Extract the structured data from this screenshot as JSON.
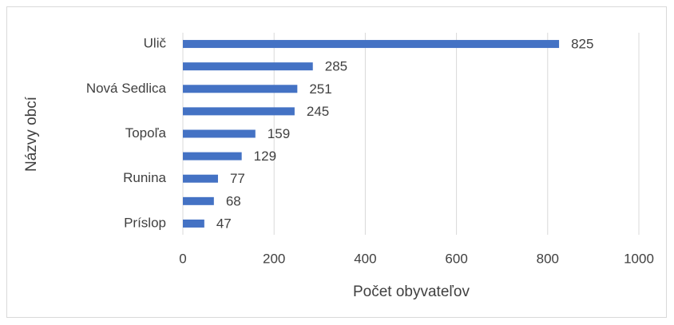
{
  "chart_data": {
    "type": "bar",
    "orientation": "horizontal",
    "x_label": "Počet obyvateľov",
    "y_label": "Názvy obcí",
    "categories": [
      "Ulič",
      null,
      "Nová Sedlica",
      null,
      "Topoľa",
      null,
      "Runina",
      null,
      "Príslop"
    ],
    "values": [
      825,
      285,
      251,
      245,
      159,
      129,
      77,
      68,
      47
    ],
    "color": "#4472c4",
    "xlim": [
      0,
      1000
    ],
    "xticks": [
      0,
      200,
      400,
      600,
      800,
      1000
    ],
    "grid": true
  }
}
